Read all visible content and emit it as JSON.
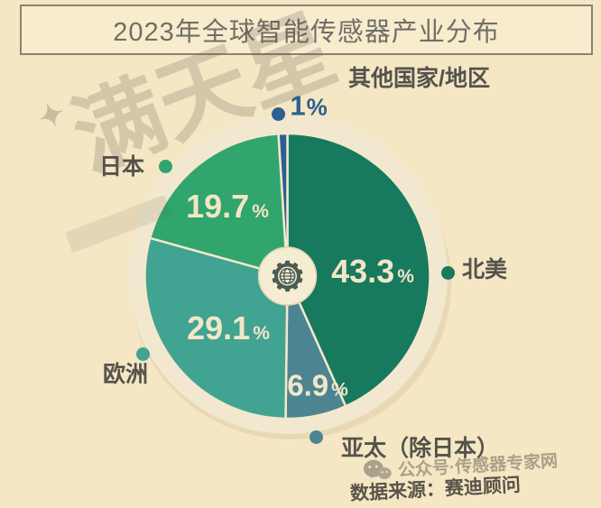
{
  "page": {
    "background": "#f5e6c4"
  },
  "header": {
    "title": "2023年全球智能传感器产业分布"
  },
  "percent_sign": "%",
  "chart_data": {
    "type": "pie",
    "title": "2023年全球智能传感器产业分布",
    "unit": "percent",
    "direction": "clockwise",
    "start_angle_deg": 0,
    "legend_position": "around",
    "slices": [
      {
        "key": "north-america",
        "label": "北美",
        "value": 43.3,
        "display": "43.3",
        "color": "#17795e"
      },
      {
        "key": "apac-ex-japan",
        "label": "亚太（除日本）",
        "value": 6.9,
        "display": "6.9",
        "color": "#4d8492"
      },
      {
        "key": "europe",
        "label": "欧洲",
        "value": 29.1,
        "display": "29.1",
        "color": "#41a392"
      },
      {
        "key": "japan",
        "label": "日本",
        "value": 19.7,
        "display": "19.7",
        "color": "#30a56d"
      },
      {
        "key": "other-countries",
        "label": "其他国家/地区",
        "value": 1,
        "display": "1",
        "color": "#2b608f"
      }
    ],
    "center_icon": "gear-globe",
    "ring_color": "#f1e8cf",
    "separator_color": "#f3e8cc"
  },
  "watermarks": {
    "brand": "满天星",
    "brand_star": "✦",
    "account_line": "公众号·传感器专家网"
  },
  "footer": {
    "source": "数据来源：赛迪顾问"
  }
}
